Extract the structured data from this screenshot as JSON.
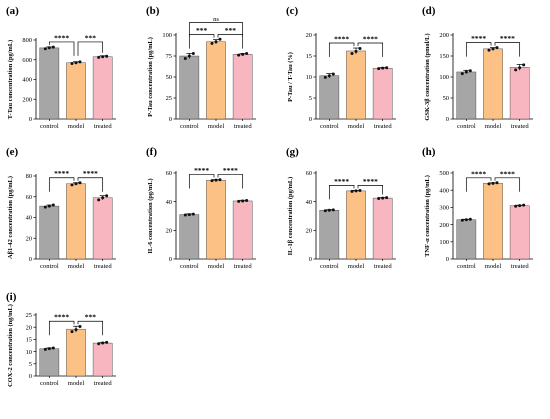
{
  "colors": {
    "control": "#a6a6a6",
    "model": "#fbc185",
    "treated": "#f8b7c0",
    "axis": "#000000",
    "point": "#111111"
  },
  "chart_data": [
    {
      "type": "bar",
      "letter": "(a)",
      "ylabel": "T-Tau concentration (pg/mL)",
      "categories": [
        "control",
        "model",
        "treated"
      ],
      "values": [
        720,
        570,
        630
      ],
      "errors": [
        10,
        10,
        10
      ],
      "points": [
        [
          712,
          722,
          728
        ],
        [
          562,
          570,
          578
        ],
        [
          624,
          630,
          636
        ]
      ],
      "ylim": [
        0,
        800
      ],
      "yticks": [
        "0",
        "200",
        "400",
        "600",
        "800"
      ],
      "brackets": [
        {
          "from": 0,
          "to": 1,
          "label": "****",
          "level": 0
        },
        {
          "from": 1,
          "to": 2,
          "label": "***",
          "level": 0
        }
      ]
    },
    {
      "type": "bar",
      "letter": "(b)",
      "ylabel": "P-Tau concentration (pg/mL)",
      "categories": [
        "control",
        "model",
        "treated"
      ],
      "values": [
        75,
        92,
        77
      ],
      "errors": [
        3,
        2.5,
        1
      ],
      "points": [
        [
          72,
          75,
          78
        ],
        [
          90,
          92,
          95
        ],
        [
          76,
          77,
          78
        ]
      ],
      "ylim": [
        0,
        100
      ],
      "yticks": [
        "0",
        "25",
        "50",
        "75",
        "100"
      ],
      "brackets": [
        {
          "from": 0,
          "to": 1,
          "label": "***",
          "level": 0
        },
        {
          "from": 1,
          "to": 2,
          "label": "***",
          "level": 0
        },
        {
          "from": 0,
          "to": 2,
          "label": "ns",
          "level": 1
        }
      ]
    },
    {
      "type": "bar",
      "letter": "(c)",
      "ylabel": "P-Tau / T-Tau (%)",
      "categories": [
        "control",
        "model",
        "treated"
      ],
      "values": [
        10.3,
        16.2,
        12.1
      ],
      "errors": [
        0.5,
        0.7,
        0.2
      ],
      "points": [
        [
          9.9,
          10.3,
          10.7
        ],
        [
          15.6,
          16.1,
          16.8
        ],
        [
          12.0,
          12.1,
          12.2
        ]
      ],
      "ylim": [
        0,
        20
      ],
      "yticks": [
        "0",
        "5",
        "10",
        "15",
        "20"
      ],
      "brackets": [
        {
          "from": 0,
          "to": 1,
          "label": "****",
          "level": 0
        },
        {
          "from": 1,
          "to": 2,
          "label": "****",
          "level": 0
        }
      ]
    },
    {
      "type": "bar",
      "letter": "(d)",
      "ylabel": "GSK-3β concentration (pmol/L)",
      "categories": [
        "control",
        "model",
        "treated"
      ],
      "values": [
        112,
        167,
        123
      ],
      "errors": [
        4,
        3,
        7
      ],
      "points": [
        [
          108,
          112,
          115
        ],
        [
          164,
          167,
          170
        ],
        [
          117,
          122,
          129
        ]
      ],
      "ylim": [
        0,
        200
      ],
      "yticks": [
        "0",
        "50",
        "100",
        "150",
        "200"
      ],
      "brackets": [
        {
          "from": 0,
          "to": 1,
          "label": "****",
          "level": 0
        },
        {
          "from": 1,
          "to": 2,
          "label": "****",
          "level": 0
        }
      ]
    },
    {
      "type": "bar",
      "letter": "(e)",
      "ylabel": "Aβ1-42 concentration (pg/mL)",
      "categories": [
        "control",
        "model",
        "treated"
      ],
      "values": [
        51,
        72.5,
        59
      ],
      "errors": [
        1,
        1,
        2
      ],
      "points": [
        [
          50,
          51,
          52
        ],
        [
          71.5,
          72.5,
          73.5
        ],
        [
          57,
          59,
          61
        ]
      ],
      "ylim": [
        0,
        80
      ],
      "yticks": [
        "0",
        "20",
        "40",
        "60",
        "80"
      ],
      "brackets": [
        {
          "from": 0,
          "to": 1,
          "label": "****",
          "level": 0
        },
        {
          "from": 1,
          "to": 2,
          "label": "****",
          "level": 0
        }
      ]
    },
    {
      "type": "bar",
      "letter": "(f)",
      "ylabel": "IL-6 concentration (pg/mL)",
      "categories": [
        "control",
        "model",
        "treated"
      ],
      "values": [
        31,
        55,
        40.5
      ],
      "errors": [
        0.5,
        0.5,
        0.5
      ],
      "points": [
        [
          30.7,
          31,
          31.3
        ],
        [
          54.7,
          55,
          55.3
        ],
        [
          40.2,
          40.5,
          40.8
        ]
      ],
      "ylim": [
        0,
        60
      ],
      "yticks": [
        "0",
        "20",
        "40",
        "60"
      ],
      "brackets": [
        {
          "from": 0,
          "to": 1,
          "label": "****",
          "level": 0
        },
        {
          "from": 1,
          "to": 2,
          "label": "****",
          "level": 0
        }
      ]
    },
    {
      "type": "bar",
      "letter": "(g)",
      "ylabel": "IL-1β concentration (pg/mL)",
      "categories": [
        "control",
        "model",
        "treated"
      ],
      "values": [
        34,
        47.5,
        42.5
      ],
      "errors": [
        0.4,
        0.4,
        0.4
      ],
      "points": [
        [
          33.7,
          34,
          34.3
        ],
        [
          47.2,
          47.5,
          47.8
        ],
        [
          42.2,
          42.5,
          42.8
        ]
      ],
      "ylim": [
        0,
        60
      ],
      "yticks": [
        "0",
        "20",
        "40",
        "60"
      ],
      "brackets": [
        {
          "from": 0,
          "to": 1,
          "label": "****",
          "level": 0
        },
        {
          "from": 1,
          "to": 2,
          "label": "****",
          "level": 0
        }
      ]
    },
    {
      "type": "bar",
      "letter": "(h)",
      "ylabel": "TNF-α concentration (pg/mL)",
      "categories": [
        "control",
        "model",
        "treated"
      ],
      "values": [
        228,
        440,
        310
      ],
      "errors": [
        3,
        3,
        3
      ],
      "points": [
        [
          225,
          228,
          231
        ],
        [
          437,
          440,
          443
        ],
        [
          307,
          310,
          313
        ]
      ],
      "ylim": [
        0,
        500
      ],
      "yticks": [
        "0",
        "100",
        "200",
        "300",
        "400",
        "500"
      ],
      "brackets": [
        {
          "from": 0,
          "to": 1,
          "label": "****",
          "level": 0
        },
        {
          "from": 1,
          "to": 2,
          "label": "****",
          "level": 0
        }
      ]
    },
    {
      "type": "bar",
      "letter": "(i)",
      "ylabel": "COX-2 concentration (ng/mL)",
      "categories": [
        "control",
        "model",
        "treated"
      ],
      "values": [
        11.2,
        19.2,
        13.5
      ],
      "errors": [
        0.3,
        1.2,
        0.3
      ],
      "points": [
        [
          10.9,
          11.2,
          11.5
        ],
        [
          18.2,
          19.0,
          20.3
        ],
        [
          13.2,
          13.5,
          13.8
        ]
      ],
      "ylim": [
        0,
        25
      ],
      "yticks": [
        "0",
        "5",
        "10",
        "15",
        "20",
        "25"
      ],
      "brackets": [
        {
          "from": 0,
          "to": 1,
          "label": "****",
          "level": 0
        },
        {
          "from": 1,
          "to": 2,
          "label": "***",
          "level": 0
        }
      ]
    }
  ]
}
